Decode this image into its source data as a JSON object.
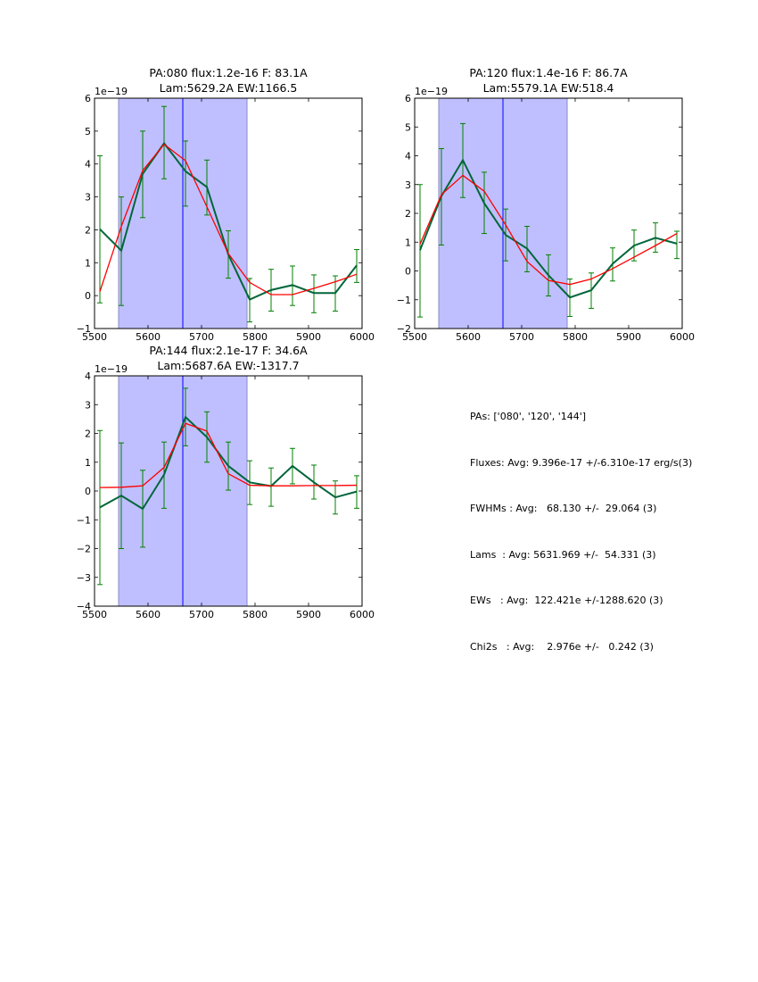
{
  "chart_data": [
    {
      "type": "line",
      "title": [
        "PA:080 flux:1.2e-16 F: 83.1A",
        "Lam:5629.2A EW:1166.5"
      ],
      "xlabel": "",
      "ylabel": "",
      "offset_label": "1e−19",
      "xlim": [
        5500,
        6000
      ],
      "ylim": [
        -1,
        6
      ],
      "xticks": [
        5500,
        5600,
        5700,
        5800,
        5900,
        6000
      ],
      "yticks": [
        -1,
        0,
        1,
        2,
        3,
        4,
        5,
        6
      ],
      "ytick_labels": [
        "−1",
        "0",
        "1",
        "2",
        "3",
        "4",
        "5",
        "6"
      ],
      "shaded_region": [
        5545,
        5785
      ],
      "vline": 5665,
      "x": [
        5510,
        5550,
        5590,
        5630,
        5670,
        5710,
        5750,
        5790,
        5830,
        5870,
        5910,
        5950,
        5990
      ],
      "series": [
        {
          "name": "data",
          "color": "#00663a",
          "values": [
            2.02,
            1.37,
            3.7,
            4.63,
            3.78,
            3.3,
            1.25,
            -0.12,
            0.17,
            0.32,
            0.08,
            0.08,
            0.92
          ],
          "err_upper": [
            4.25,
            3.0,
            5.0,
            5.75,
            4.7,
            4.12,
            1.97,
            0.52,
            0.8,
            0.9,
            0.63,
            0.6,
            1.4
          ],
          "err_lower": [
            -0.22,
            -0.3,
            2.37,
            3.55,
            2.72,
            2.45,
            0.53,
            -0.8,
            -0.47,
            -0.3,
            -0.52,
            -0.47,
            0.4
          ]
        },
        {
          "name": "fit",
          "color": "#ff0000",
          "values": [
            0.12,
            2.1,
            3.8,
            4.6,
            4.1,
            2.7,
            1.28,
            0.4,
            0.03,
            0.03,
            0.22,
            0.42,
            0.65
          ]
        }
      ]
    },
    {
      "type": "line",
      "title": [
        "PA:120 flux:1.4e-16 F: 86.7A",
        "Lam:5579.1A EW:518.4"
      ],
      "xlabel": "",
      "ylabel": "",
      "offset_label": "1e−19",
      "xlim": [
        5500,
        6000
      ],
      "ylim": [
        -2,
        6
      ],
      "xticks": [
        5500,
        5600,
        5700,
        5800,
        5900,
        6000
      ],
      "yticks": [
        -2,
        -1,
        0,
        1,
        2,
        3,
        4,
        5,
        6
      ],
      "ytick_labels": [
        "−2",
        "−1",
        "0",
        "1",
        "2",
        "3",
        "4",
        "5",
        "6"
      ],
      "shaded_region": [
        5545,
        5785
      ],
      "vline": 5665,
      "x": [
        5510,
        5550,
        5590,
        5630,
        5670,
        5710,
        5750,
        5790,
        5830,
        5870,
        5910,
        5950,
        5990
      ],
      "series": [
        {
          "name": "data",
          "color": "#00663a",
          "values": [
            0.72,
            2.6,
            3.85,
            2.35,
            1.25,
            0.78,
            -0.15,
            -0.92,
            -0.67,
            0.25,
            0.88,
            1.15,
            0.95
          ],
          "err_upper": [
            3.0,
            4.25,
            5.12,
            3.43,
            2.15,
            1.55,
            0.56,
            -0.28,
            -0.07,
            0.8,
            1.42,
            1.67,
            1.38
          ],
          "err_lower": [
            -1.6,
            0.9,
            2.55,
            1.3,
            0.35,
            -0.03,
            -0.87,
            -1.58,
            -1.3,
            -0.35,
            0.35,
            0.65,
            0.43
          ]
        },
        {
          "name": "fit",
          "color": "#ff0000",
          "values": [
            0.93,
            2.65,
            3.32,
            2.77,
            1.6,
            0.33,
            -0.33,
            -0.47,
            -0.28,
            0.08,
            0.48,
            0.88,
            1.3
          ]
        }
      ]
    },
    {
      "type": "line",
      "title": [
        "PA:144 flux:2.1e-17 F: 34.6A",
        "Lam:5687.6A EW:-1317.7"
      ],
      "xlabel": "",
      "ylabel": "",
      "offset_label": "1e−19",
      "xlim": [
        5500,
        6000
      ],
      "ylim": [
        -4,
        4
      ],
      "xticks": [
        5500,
        5600,
        5700,
        5800,
        5900,
        6000
      ],
      "yticks": [
        -4,
        -3,
        -2,
        -1,
        0,
        1,
        2,
        3,
        4
      ],
      "ytick_labels": [
        "−4",
        "−3",
        "−2",
        "−1",
        "0",
        "1",
        "2",
        "3",
        "4"
      ],
      "shaded_region": [
        5545,
        5785
      ],
      "vline": 5665,
      "x": [
        5510,
        5550,
        5590,
        5630,
        5670,
        5710,
        5750,
        5790,
        5830,
        5870,
        5910,
        5950,
        5990
      ],
      "series": [
        {
          "name": "data",
          "color": "#00663a",
          "values": [
            -0.57,
            -0.16,
            -0.62,
            0.57,
            2.57,
            1.87,
            0.87,
            0.3,
            0.17,
            0.87,
            0.3,
            -0.22,
            -0.02
          ],
          "err_upper": [
            2.1,
            1.67,
            0.72,
            1.7,
            3.57,
            2.75,
            1.7,
            1.05,
            0.8,
            1.48,
            0.9,
            0.35,
            0.53
          ],
          "err_lower": [
            -3.25,
            -2.0,
            -1.95,
            -0.6,
            1.57,
            1.0,
            0.03,
            -0.47,
            -0.53,
            0.25,
            -0.28,
            -0.8,
            -0.6
          ]
        },
        {
          "name": "fit",
          "color": "#ff0000",
          "values": [
            0.12,
            0.13,
            0.18,
            0.82,
            2.35,
            2.08,
            0.6,
            0.2,
            0.18,
            0.18,
            0.19,
            0.19,
            0.2
          ]
        }
      ]
    }
  ],
  "colors": {
    "shade": "#bfbfff",
    "shade_edge": "#8a8ac4",
    "vline": "#0000ff",
    "errorbar": "#008000",
    "data_line": "#00663a",
    "fit_line": "#ff0000"
  },
  "summary": {
    "lines": [
      "PAs: ['080', '120', '144']",
      "Fluxes: Avg: 9.396e-17 +/-6.310e-17 erg/s(3)",
      "FWHMs : Avg:   68.130 +/-  29.064 (3)",
      "Lams  : Avg: 5631.969 +/-  54.331 (3)",
      "EWs   : Avg:  122.421e +/-1288.620 (3)",
      "Chi2s   : Avg:    2.976e +/-   0.242 (3)"
    ]
  }
}
